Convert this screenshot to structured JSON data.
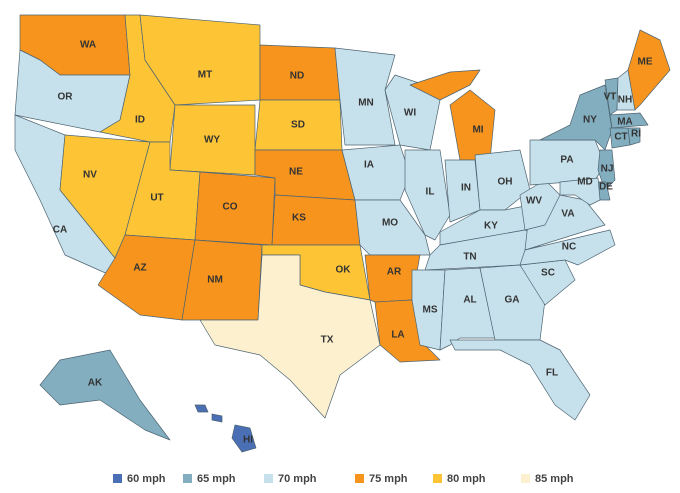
{
  "legend": [
    {
      "label": "60 mph",
      "color": "#4a6fb5"
    },
    {
      "label": "65 mph",
      "color": "#82aebf"
    },
    {
      "label": "70 mph",
      "color": "#c7e1ec"
    },
    {
      "label": "75 mph",
      "color": "#f7941d"
    },
    {
      "label": "80 mph",
      "color": "#fdc536"
    },
    {
      "label": "85 mph",
      "color": "#fdf0cf"
    }
  ],
  "states": [
    {
      "label": "WA",
      "speed": "75 mph"
    },
    {
      "label": "OR",
      "speed": "70 mph"
    },
    {
      "label": "CA",
      "speed": "70 mph"
    },
    {
      "label": "NV",
      "speed": "80 mph"
    },
    {
      "label": "ID",
      "speed": "80 mph"
    },
    {
      "label": "MT",
      "speed": "80 mph"
    },
    {
      "label": "WY",
      "speed": "80 mph"
    },
    {
      "label": "UT",
      "speed": "80 mph"
    },
    {
      "label": "AZ",
      "speed": "75 mph"
    },
    {
      "label": "CO",
      "speed": "75 mph"
    },
    {
      "label": "NM",
      "speed": "75 mph"
    },
    {
      "label": "ND",
      "speed": "75 mph"
    },
    {
      "label": "SD",
      "speed": "80 mph"
    },
    {
      "label": "NE",
      "speed": "75 mph"
    },
    {
      "label": "KS",
      "speed": "75 mph"
    },
    {
      "label": "OK",
      "speed": "80 mph"
    },
    {
      "label": "TX",
      "speed": "85 mph"
    },
    {
      "label": "MN",
      "speed": "70 mph"
    },
    {
      "label": "IA",
      "speed": "70 mph"
    },
    {
      "label": "MO",
      "speed": "70 mph"
    },
    {
      "label": "AR",
      "speed": "75 mph"
    },
    {
      "label": "LA",
      "speed": "75 mph"
    },
    {
      "label": "WI",
      "speed": "70 mph"
    },
    {
      "label": "IL",
      "speed": "70 mph"
    },
    {
      "label": "MI",
      "speed": "75 mph"
    },
    {
      "label": "IN",
      "speed": "70 mph"
    },
    {
      "label": "OH",
      "speed": "70 mph"
    },
    {
      "label": "KY",
      "speed": "70 mph"
    },
    {
      "label": "TN",
      "speed": "70 mph"
    },
    {
      "label": "MS",
      "speed": "70 mph"
    },
    {
      "label": "AL",
      "speed": "70 mph"
    },
    {
      "label": "GA",
      "speed": "70 mph"
    },
    {
      "label": "FL",
      "speed": "70 mph"
    },
    {
      "label": "SC",
      "speed": "70 mph"
    },
    {
      "label": "NC",
      "speed": "70 mph"
    },
    {
      "label": "VA",
      "speed": "70 mph"
    },
    {
      "label": "WV",
      "speed": "70 mph"
    },
    {
      "label": "PA",
      "speed": "70 mph"
    },
    {
      "label": "NY",
      "speed": "65 mph"
    },
    {
      "label": "VT",
      "speed": "65 mph"
    },
    {
      "label": "NH",
      "speed": "70 mph"
    },
    {
      "label": "ME",
      "speed": "75 mph"
    },
    {
      "label": "MA",
      "speed": "65 mph"
    },
    {
      "label": "CT",
      "speed": "65 mph"
    },
    {
      "label": "RI",
      "speed": "65 mph"
    },
    {
      "label": "NJ",
      "speed": "65 mph"
    },
    {
      "label": "DE",
      "speed": "65 mph"
    },
    {
      "label": "MD",
      "speed": "70 mph"
    },
    {
      "label": "AK",
      "speed": "65 mph"
    },
    {
      "label": "HI",
      "speed": "60 mph"
    }
  ]
}
